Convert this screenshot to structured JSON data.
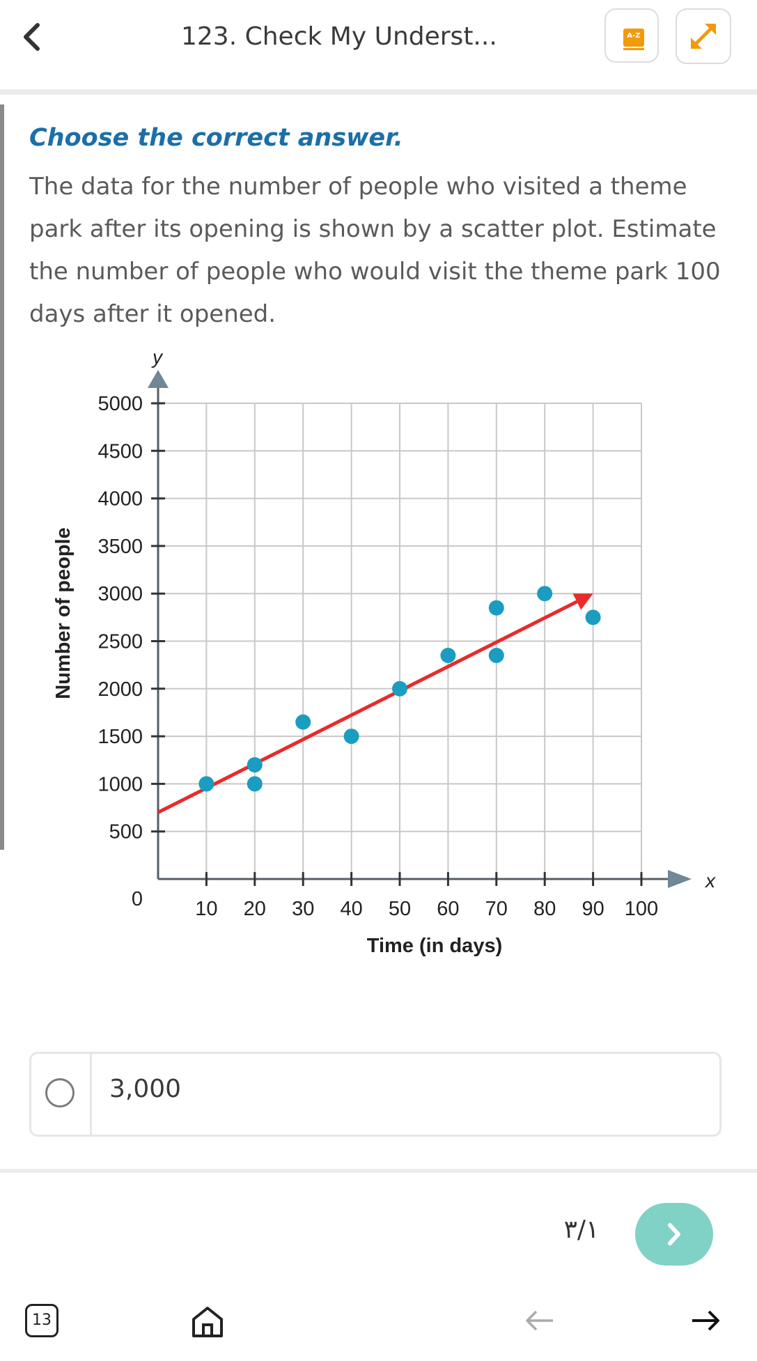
{
  "header": {
    "title": "123. Check My Underst...",
    "az_label": "A-Z"
  },
  "content": {
    "instruction": "Choose the correct answer.",
    "question": "The data for the number of people who visited a theme park after its opening is shown by a scatter plot. Estimate the number of people who would visit the theme park 100 days after it opened."
  },
  "chart_data": {
    "type": "scatter",
    "xlabel": "Time (in days)",
    "ylabel": "Number of people",
    "x_axis_letter": "x",
    "y_axis_letter": "y",
    "xlim": [
      0,
      100
    ],
    "ylim": [
      0,
      5000
    ],
    "x_ticks": [
      10,
      20,
      30,
      40,
      50,
      60,
      70,
      80,
      90,
      100
    ],
    "y_ticks": [
      500,
      1000,
      1500,
      2000,
      2500,
      3000,
      3500,
      4000,
      4500,
      5000
    ],
    "origin_label": "0",
    "grid": true,
    "points": [
      {
        "x": 10,
        "y": 1000
      },
      {
        "x": 20,
        "y": 1200
      },
      {
        "x": 20,
        "y": 1000
      },
      {
        "x": 30,
        "y": 1650
      },
      {
        "x": 40,
        "y": 1500
      },
      {
        "x": 50,
        "y": 2000
      },
      {
        "x": 60,
        "y": 2350
      },
      {
        "x": 70,
        "y": 2850
      },
      {
        "x": 70,
        "y": 2350
      },
      {
        "x": 80,
        "y": 3000
      },
      {
        "x": 90,
        "y": 2750
      }
    ],
    "trend_line": {
      "x1": 0,
      "y1": 700,
      "x2": 90,
      "y2": 3000
    },
    "point_color": "#1a9dc1",
    "trend_color": "#e82b2b",
    "grid_color": "#c8c8c8",
    "axis_color": "#555e66"
  },
  "options": [
    {
      "label": "3,000"
    }
  ],
  "pager": {
    "indicator": "٣/١"
  },
  "bottom_nav": {
    "page_number": "13"
  },
  "colors": {
    "accent": "#1c6fa8",
    "next_button": "#80d2c6",
    "az_icon": "#f29a0b"
  }
}
